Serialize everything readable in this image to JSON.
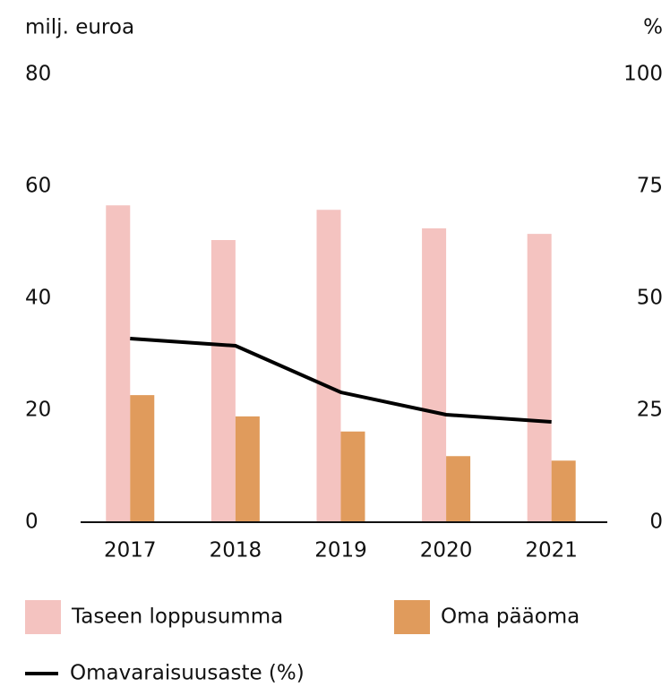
{
  "chart_data": {
    "type": "bar",
    "y_label": "milj. euroa",
    "y2_label": "%",
    "categories": [
      "2017",
      "2018",
      "2019",
      "2020",
      "2021"
    ],
    "series": [
      {
        "name": "Taseen loppusumma",
        "color": "#f4c3c0",
        "values": [
          56.6,
          50.4,
          55.8,
          52.5,
          51.5
        ]
      },
      {
        "name": "Oma pääoma",
        "color": "#e09b5c",
        "values": [
          22.7,
          18.9,
          16.2,
          11.8,
          11.0
        ]
      },
      {
        "name": "Omavaraisuusaste (%)",
        "color": "#000000",
        "type": "line",
        "axis": "y2",
        "values": [
          41,
          39.4,
          29,
          24,
          22.4
        ]
      }
    ],
    "ylim": [
      0,
      80
    ],
    "yticks": [
      0,
      20,
      40,
      60,
      80
    ],
    "y2lim": [
      0,
      100
    ],
    "y2ticks": [
      0,
      25,
      50,
      75,
      100
    ],
    "grid": false
  }
}
